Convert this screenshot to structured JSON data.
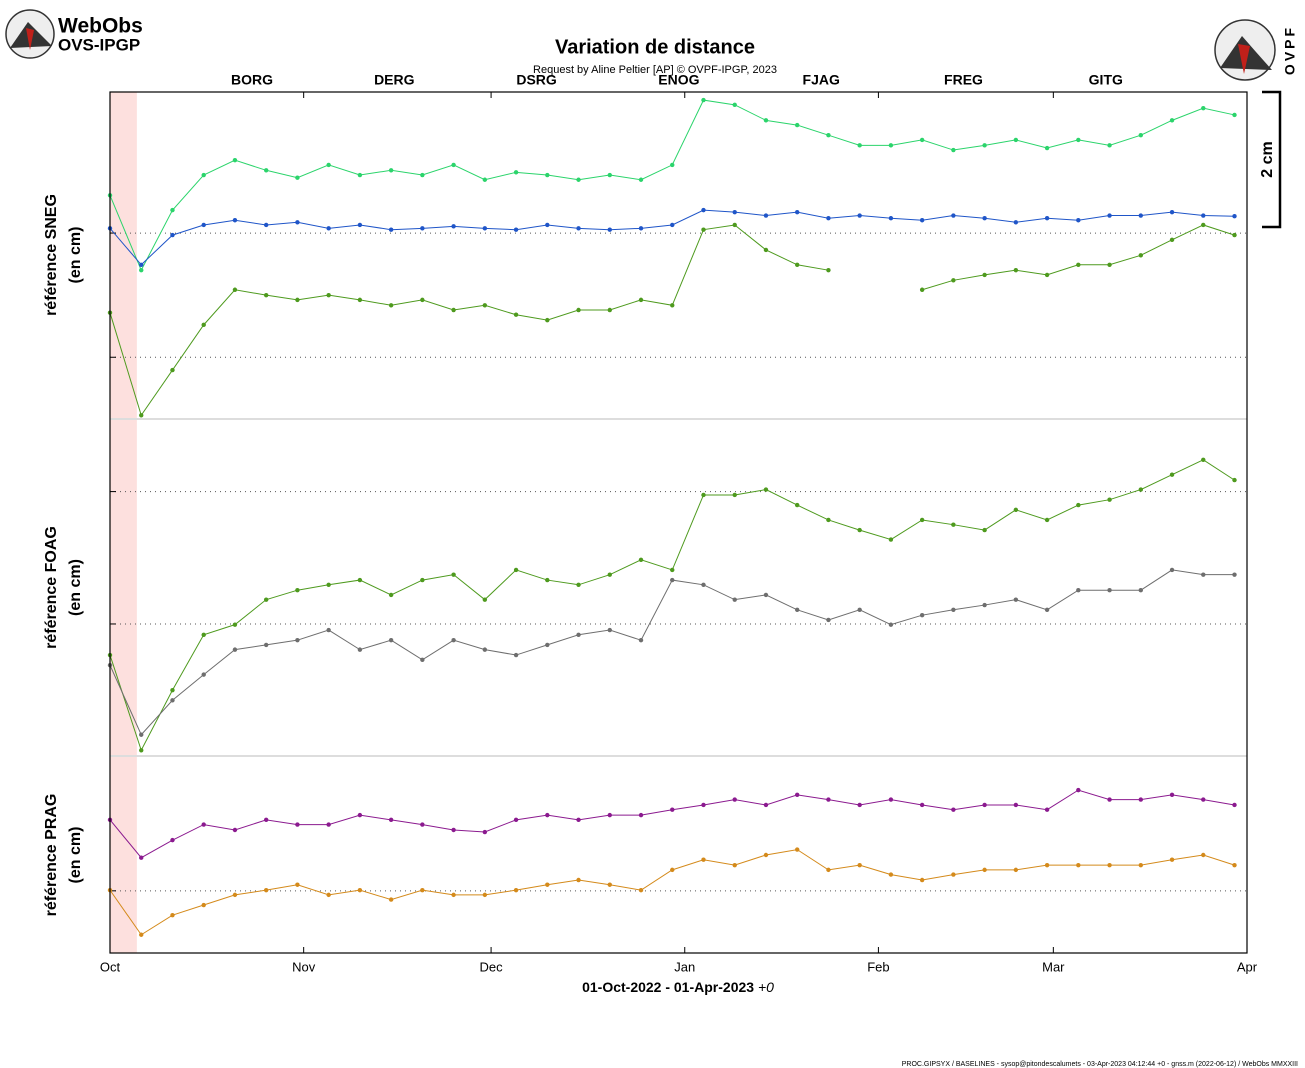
{
  "header": {
    "logo_line1": "WebObs",
    "logo_line2": "OVS-IPGP",
    "logo_right": "OVPF"
  },
  "footer": "PROC.GIPSYX / BASELINES  - sysop@pitondescalumets - 03-Apr-2023 04:12:44 +0 - gnss.m (2022-06-12) / WebObs MMXXIII",
  "chart_data": {
    "type": "line",
    "title": "Variation de distance",
    "subtitle": "Request by Aline Peltier [AP] © OVPF-IPGP, 2023",
    "legend": [
      {
        "name": "BORG",
        "color": "#4e9a1e"
      },
      {
        "name": "DERG",
        "color": "#1f55c8"
      },
      {
        "name": "DSRG",
        "color": "#2bd46b"
      },
      {
        "name": "ENOG",
        "color": "#6e6e6e"
      },
      {
        "name": "FJAG",
        "color": "#7fc31a"
      },
      {
        "name": "FREG",
        "color": "#d48a1b"
      },
      {
        "name": "GITG",
        "color": "#8b1a8f"
      }
    ],
    "x_label": "01-Oct-2022 - 01-Apr-2023",
    "x_label_suffix": "+0",
    "xlim": [
      0,
      182
    ],
    "xticks": [
      {
        "value": 0,
        "label": "Oct"
      },
      {
        "value": 31,
        "label": "Nov"
      },
      {
        "value": 61,
        "label": "Dec"
      },
      {
        "value": 92,
        "label": "Jan"
      },
      {
        "value": 123,
        "label": "Feb"
      },
      {
        "value": 151,
        "label": "Mar"
      },
      {
        "value": 182,
        "label": "Apr"
      }
    ],
    "highlight": [
      0,
      4.3
    ],
    "scale_bar": {
      "value": 2,
      "label": "2 cm"
    },
    "x": [
      0,
      5,
      10,
      15,
      20,
      25,
      30,
      35,
      40,
      45,
      50,
      55,
      60,
      65,
      70,
      75,
      80,
      85,
      90,
      95,
      100,
      105,
      110,
      115,
      120,
      125,
      130,
      135,
      140,
      145,
      150,
      155,
      160,
      165,
      170,
      175,
      180
    ],
    "panels": [
      {
        "ylabel": [
          "référence SNEG",
          "(en cm)"
        ],
        "ylim": [
          0,
          4.83
        ],
        "yticks": [
          0.9,
          2.74
        ],
        "series": [
          {
            "color": "#2bd46b",
            "values": [
              3.3,
              2.19,
              3.08,
              3.6,
              3.82,
              3.67,
              3.56,
              3.75,
              3.6,
              3.67,
              3.6,
              3.75,
              3.53,
              3.64,
              3.6,
              3.53,
              3.6,
              3.53,
              3.75,
              4.71,
              4.64,
              4.41,
              4.34,
              4.19,
              4.04,
              4.04,
              4.12,
              3.97,
              4.04,
              4.12,
              4.0,
              4.12,
              4.04,
              4.19,
              4.41,
              4.59,
              4.49
            ]
          },
          {
            "color": "#1f55c8",
            "values": [
              2.81,
              2.27,
              2.71,
              2.86,
              2.93,
              2.86,
              2.9,
              2.81,
              2.86,
              2.79,
              2.81,
              2.84,
              2.81,
              2.79,
              2.86,
              2.81,
              2.79,
              2.81,
              2.86,
              3.08,
              3.05,
              3.0,
              3.05,
              2.96,
              3.0,
              2.96,
              2.93,
              3.0,
              2.96,
              2.9,
              2.96,
              2.93,
              3.0,
              3.0,
              3.05,
              3.0,
              2.99
            ]
          },
          {
            "color": "#4e9a1e",
            "values": [
              1.56,
              0.04,
              0.71,
              1.38,
              1.9,
              1.82,
              1.75,
              1.82,
              1.75,
              1.67,
              1.75,
              1.6,
              1.67,
              1.53,
              1.45,
              1.6,
              1.6,
              1.75,
              1.67,
              2.79,
              2.86,
              2.49,
              2.27,
              2.19,
              null,
              null,
              1.9,
              2.04,
              2.12,
              2.19,
              2.12,
              2.27,
              2.27,
              2.41,
              2.64,
              2.86,
              2.71
            ]
          }
        ]
      },
      {
        "ylabel": [
          "référence FOAG",
          "(en cm)"
        ],
        "ylim": [
          0,
          4.96
        ],
        "yticks": [
          1.94,
          3.9
        ],
        "series": [
          {
            "color": "#4e9a1e",
            "values": [
              1.48,
              0.07,
              0.96,
              1.78,
              1.93,
              2.3,
              2.44,
              2.52,
              2.59,
              2.37,
              2.59,
              2.67,
              2.3,
              2.74,
              2.59,
              2.52,
              2.67,
              2.89,
              2.74,
              3.85,
              3.85,
              3.93,
              3.7,
              3.48,
              3.33,
              3.19,
              3.48,
              3.41,
              3.33,
              3.63,
              3.48,
              3.7,
              3.78,
              3.93,
              4.15,
              4.37,
              4.07
            ]
          },
          {
            "color": "#6e6e6e",
            "values": [
              1.33,
              0.3,
              0.81,
              1.19,
              1.56,
              1.63,
              1.7,
              1.85,
              1.56,
              1.7,
              1.41,
              1.7,
              1.56,
              1.48,
              1.63,
              1.78,
              1.85,
              1.7,
              2.59,
              2.52,
              2.3,
              2.37,
              2.15,
              2.0,
              2.15,
              1.93,
              2.07,
              2.15,
              2.22,
              2.3,
              2.15,
              2.44,
              2.44,
              2.44,
              2.74,
              2.67,
              2.67
            ]
          }
        ]
      },
      {
        "ylabel": [
          "référence PRAG",
          "(en cm)"
        ],
        "ylim": [
          0,
          2.9
        ],
        "yticks": [
          0.92
        ],
        "series": [
          {
            "color": "#8b1a8f",
            "values": [
              1.97,
              1.41,
              1.67,
              1.9,
              1.82,
              1.97,
              1.9,
              1.9,
              2.04,
              1.97,
              1.9,
              1.82,
              1.79,
              1.97,
              2.04,
              1.97,
              2.04,
              2.04,
              2.12,
              2.19,
              2.27,
              2.19,
              2.34,
              2.27,
              2.19,
              2.27,
              2.19,
              2.12,
              2.19,
              2.19,
              2.12,
              2.41,
              2.27,
              2.27,
              2.34,
              2.27,
              2.19
            ]
          },
          {
            "color": "#d48a1b",
            "values": [
              0.93,
              0.27,
              0.56,
              0.71,
              0.86,
              0.93,
              1.01,
              0.86,
              0.93,
              0.79,
              0.93,
              0.86,
              0.86,
              0.93,
              1.01,
              1.08,
              1.01,
              0.93,
              1.23,
              1.38,
              1.3,
              1.45,
              1.53,
              1.23,
              1.3,
              1.16,
              1.08,
              1.16,
              1.23,
              1.23,
              1.3,
              1.3,
              1.3,
              1.3,
              1.38,
              1.45,
              1.3
            ]
          }
        ]
      }
    ]
  }
}
